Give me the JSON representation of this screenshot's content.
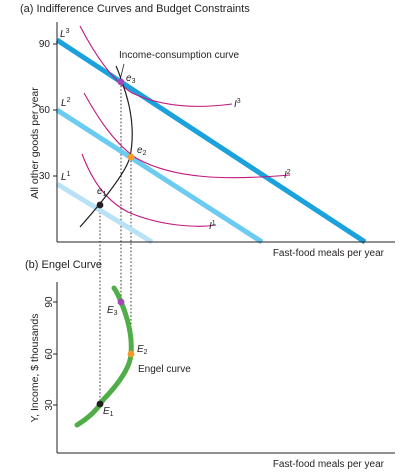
{
  "panel_a": {
    "title": "(a) Indifference Curves and Budget Constraints",
    "ylabel": "All other goods per year",
    "xlabel": "Fast-food meals per year",
    "yticks": [
      "90",
      "60",
      "30"
    ],
    "budget_labels": [
      "L",
      "L",
      "L"
    ],
    "budget_superscripts": [
      "3",
      "2",
      "1"
    ],
    "curve_label": "Income-consumption curve",
    "indiff_labels": [
      "I",
      "I",
      "I"
    ],
    "indiff_superscripts": [
      "3",
      "2",
      "1"
    ],
    "points": [
      {
        "letter": "e",
        "sub": "3"
      },
      {
        "letter": "e",
        "sub": "2"
      },
      {
        "letter": "e",
        "sub": "1"
      }
    ]
  },
  "panel_b": {
    "title": "(b) Engel Curve",
    "ylabel": "Y, Income, $ thousands",
    "xlabel": "Fast-food meals per year",
    "yticks": [
      "90",
      "60",
      "30"
    ],
    "curve_label": "Engel curve",
    "points": [
      {
        "letter": "E",
        "sub": "3"
      },
      {
        "letter": "E",
        "sub": "2"
      },
      {
        "letter": "E",
        "sub": "1"
      }
    ]
  },
  "colors": {
    "budget_dark": "#1ba1dc",
    "budget_mid": "#6ccbf0",
    "budget_light": "#b9e2f6",
    "indifference": "#c2187e",
    "engel": "#4fae47",
    "point_e3": "#a347b5",
    "point_e2": "#f39a2b",
    "point_e1": "#231f20",
    "axis": "#231f20"
  }
}
